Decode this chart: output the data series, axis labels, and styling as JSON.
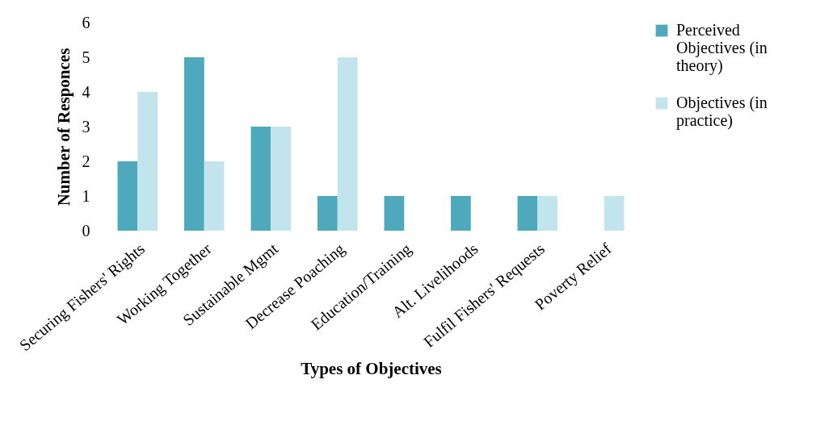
{
  "chart_data": {
    "type": "bar",
    "xlabel": "Types of Objectives",
    "ylabel": "Number of Responces",
    "categories": [
      "Securing Fishers' Rights",
      "Working Together",
      "Sustainable Mgmt",
      "Decrease Poaching",
      "Education/Training",
      "Alt. Livelihoods",
      "Fulfil Fishers' Requests",
      "Poverty Relief"
    ],
    "series": [
      {
        "name": "Perceived Objectives (in theory)",
        "color": "#4fa9bd",
        "values": [
          2,
          5,
          3,
          1,
          1,
          1,
          1,
          0
        ]
      },
      {
        "name": "Objectives (in practice)",
        "color": "#c2e4ec",
        "values": [
          4,
          2,
          3,
          5,
          0,
          0,
          1,
          1
        ]
      }
    ],
    "ylim": [
      0,
      6
    ],
    "yticks": [
      0,
      1,
      2,
      3,
      4,
      5,
      6
    ],
    "grid": false,
    "legend": "right"
  }
}
